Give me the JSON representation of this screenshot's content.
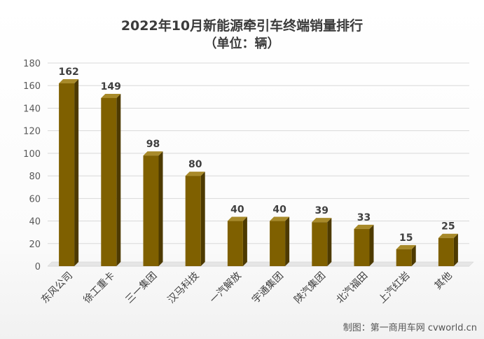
{
  "chart_data": {
    "type": "bar",
    "title": "2022年10月新能源牵引车终端销量排行",
    "subtitle": "（单位：辆）",
    "categories": [
      "东风公司",
      "徐工重卡",
      "三一集团",
      "汉马科技",
      "一汽解放",
      "宇通集团",
      "陕汽集团",
      "北汽福田",
      "上汽红岩",
      "其他"
    ],
    "values": [
      162,
      149,
      98,
      80,
      40,
      40,
      39,
      33,
      15,
      25
    ],
    "ylim": [
      0,
      180
    ],
    "yticks": [
      0,
      20,
      40,
      60,
      80,
      100,
      120,
      140,
      160,
      180
    ],
    "grid": true,
    "bar_color": "#7F6000",
    "data_labels": true
  },
  "credit": "制图：第一商用车网 cvworld.cn"
}
